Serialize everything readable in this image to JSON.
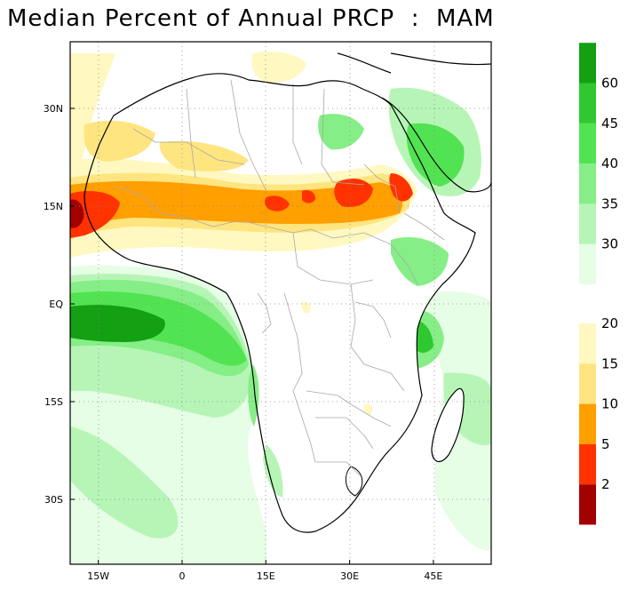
{
  "title": "Median Percent of Annual PRCP  :  MAM",
  "map": {
    "region": "Africa",
    "lon_range": [
      -22,
      55
    ],
    "lat_range": [
      -40,
      39
    ],
    "x_ticks": [
      {
        "lon": -15,
        "label": "15W"
      },
      {
        "lon": 0,
        "label": "0"
      },
      {
        "lon": 15,
        "label": "15E"
      },
      {
        "lon": 30,
        "label": "30E"
      },
      {
        "lon": 45,
        "label": "45E"
      }
    ],
    "y_ticks": [
      {
        "lat": 30,
        "label": "30N"
      },
      {
        "lat": 15,
        "label": "15N"
      },
      {
        "lat": 0,
        "label": "EQ"
      },
      {
        "lat": -15,
        "label": "15S"
      },
      {
        "lat": -30,
        "label": "30S"
      }
    ],
    "grid": "dotted"
  },
  "colorbar": {
    "wet": [
      {
        "color": "#e6fde6",
        "label": "30"
      },
      {
        "color": "#b6f5b6",
        "label": "35"
      },
      {
        "color": "#86ee86",
        "label": "40"
      },
      {
        "color": "#52e352",
        "label": "45"
      },
      {
        "color": "#30c830",
        "label": "60"
      },
      {
        "color": "#13a013",
        "label": ""
      }
    ],
    "dry": [
      {
        "color": "#fff8c0",
        "label": "20"
      },
      {
        "color": "#ffe580",
        "label": "15"
      },
      {
        "color": "#ff9f00",
        "label": "10"
      },
      {
        "color": "#ff3200",
        "label": "5"
      },
      {
        "color": "#a30000",
        "label": "2"
      }
    ]
  }
}
